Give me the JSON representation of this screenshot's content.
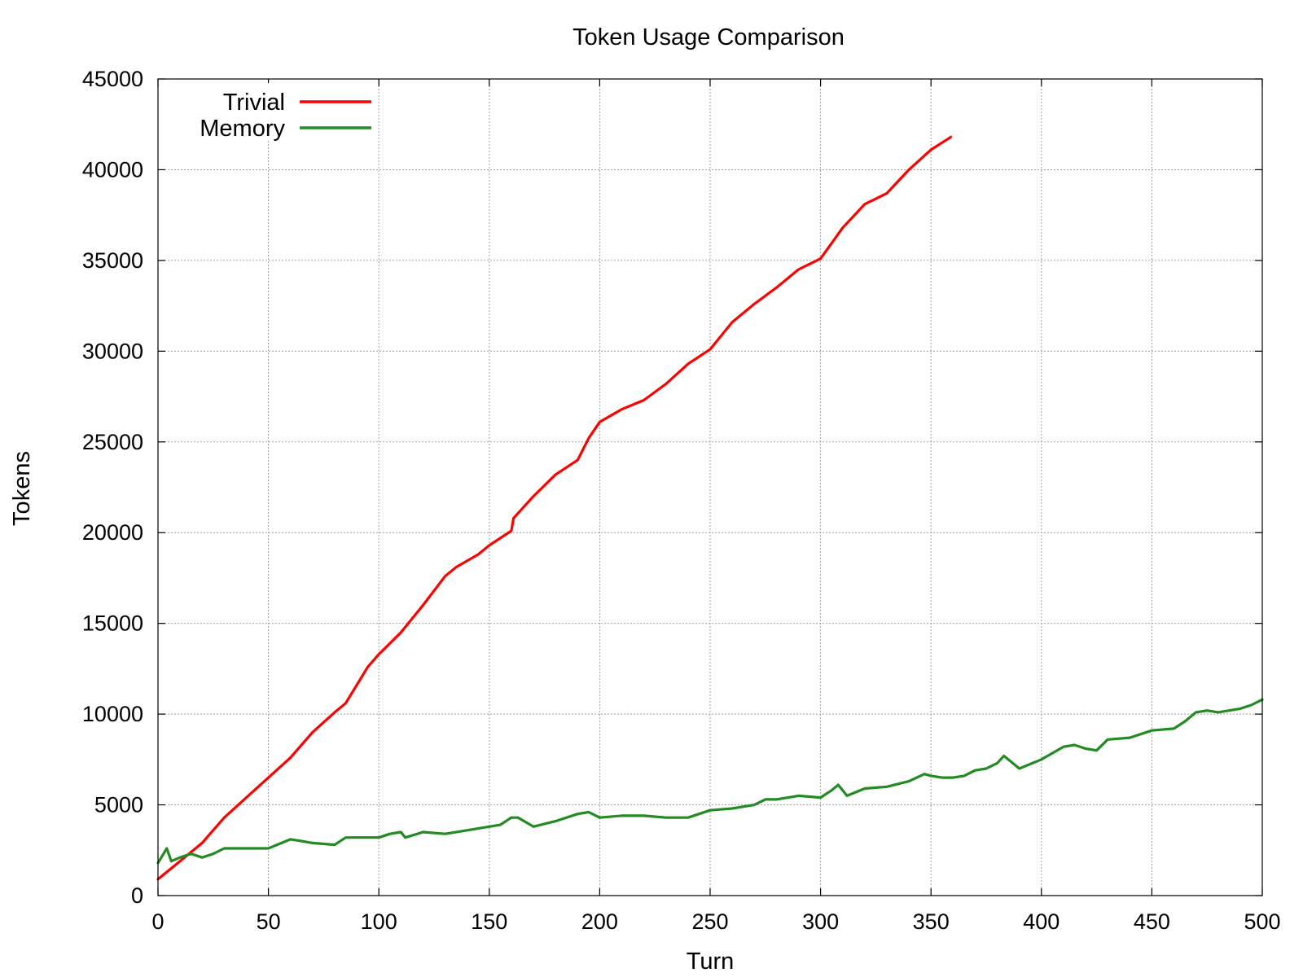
{
  "chart_data": {
    "type": "line",
    "title": "Token Usage Comparison",
    "xlabel": "Turn",
    "ylabel": "Tokens",
    "xlim": [
      0,
      500
    ],
    "ylim": [
      0,
      45000
    ],
    "xticks": [
      0,
      50,
      100,
      150,
      200,
      250,
      300,
      350,
      400,
      450,
      500
    ],
    "yticks": [
      0,
      5000,
      10000,
      15000,
      20000,
      25000,
      30000,
      35000,
      40000,
      45000
    ],
    "grid": true,
    "legend_position": "top-left",
    "series": [
      {
        "name": "Trivial",
        "color": "#ff0000",
        "x": [
          0,
          10,
          20,
          30,
          40,
          50,
          60,
          70,
          80,
          85,
          95,
          100,
          110,
          120,
          130,
          135,
          145,
          150,
          160,
          161,
          170,
          180,
          190,
          195,
          200,
          210,
          220,
          230,
          240,
          250,
          260,
          270,
          280,
          290,
          300,
          310,
          320,
          330,
          340,
          350,
          359
        ],
        "y": [
          900,
          1900,
          2900,
          4300,
          5400,
          6500,
          7600,
          9000,
          10100,
          10600,
          12600,
          13300,
          14500,
          16000,
          17600,
          18100,
          18800,
          19300,
          20100,
          20800,
          22000,
          23200,
          24000,
          25200,
          26100,
          26800,
          27300,
          28200,
          29300,
          30100,
          31600,
          32600,
          33500,
          34500,
          35100,
          36800,
          38100,
          38700,
          40000,
          41100,
          41800
        ]
      },
      {
        "name": "Memory",
        "color": "#228b22",
        "x": [
          0,
          4,
          6,
          10,
          15,
          20,
          25,
          30,
          40,
          50,
          60,
          65,
          70,
          80,
          85,
          90,
          100,
          105,
          110,
          112,
          120,
          130,
          140,
          150,
          155,
          160,
          163,
          170,
          180,
          190,
          195,
          200,
          210,
          220,
          230,
          240,
          250,
          260,
          270,
          275,
          280,
          290,
          300,
          305,
          308,
          312,
          320,
          330,
          340,
          347,
          350,
          355,
          360,
          365,
          370,
          375,
          380,
          383,
          390,
          400,
          410,
          415,
          420,
          425,
          430,
          440,
          450,
          460,
          465,
          470,
          475,
          480,
          490,
          495,
          500
        ],
        "y": [
          1800,
          2600,
          1900,
          2100,
          2300,
          2100,
          2300,
          2600,
          2600,
          2600,
          3100,
          3000,
          2900,
          2800,
          3200,
          3200,
          3200,
          3400,
          3500,
          3200,
          3500,
          3400,
          3600,
          3800,
          3900,
          4300,
          4300,
          3800,
          4100,
          4500,
          4600,
          4300,
          4400,
          4400,
          4300,
          4300,
          4700,
          4800,
          5000,
          5300,
          5300,
          5500,
          5400,
          5800,
          6100,
          5500,
          5900,
          6000,
          6300,
          6700,
          6600,
          6500,
          6500,
          6600,
          6900,
          7000,
          7300,
          7700,
          7000,
          7500,
          8200,
          8300,
          8100,
          8000,
          8600,
          8700,
          9100,
          9200,
          9600,
          10100,
          10200,
          10100,
          10300,
          10500,
          10800
        ]
      }
    ]
  }
}
